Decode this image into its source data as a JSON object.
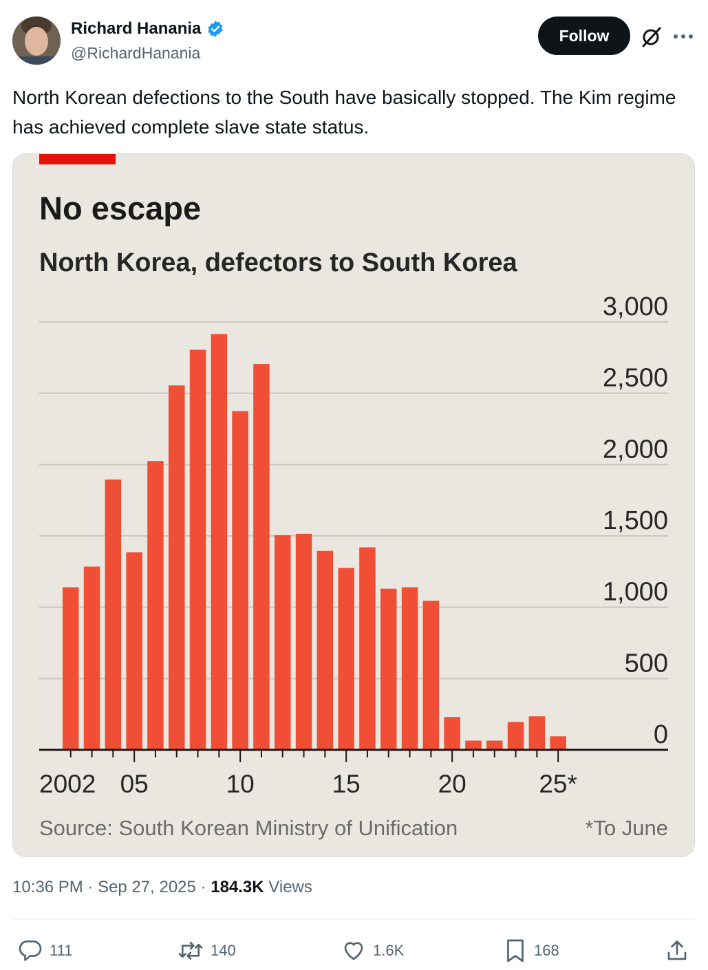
{
  "author": {
    "name": "Richard Hanania",
    "handle": "@RichardHanania",
    "verified": true
  },
  "follow_label": "Follow",
  "tweet_text": "North Korean defections to the South have basically stopped. The Kim regime has achieved complete slave state status.",
  "meta": {
    "time": "10:36 PM",
    "date": "Sep 27, 2025",
    "sep": "·",
    "views_count": "184.3K",
    "views_label": "Views"
  },
  "actions": {
    "replies": "111",
    "reposts": "140",
    "likes": "1.6K",
    "bookmarks": "168"
  },
  "colors": {
    "accent": "#1d9bf0",
    "bar": "#f04e35",
    "chart_bg": "#e9e7e0",
    "brand_red": "#e3120b"
  },
  "chart_data": {
    "type": "bar",
    "title": "No escape",
    "subtitle": "North Korea, defectors to South Korea",
    "years": [
      2002,
      2003,
      2004,
      2005,
      2006,
      2007,
      2008,
      2009,
      2010,
      2011,
      2012,
      2013,
      2014,
      2015,
      2016,
      2017,
      2018,
      2019,
      2020,
      2021,
      2022,
      2023,
      2024,
      2025
    ],
    "values": [
      1140,
      1285,
      1895,
      1385,
      2025,
      2555,
      2805,
      2915,
      2375,
      2705,
      1505,
      1515,
      1395,
      1275,
      1420,
      1130,
      1140,
      1045,
      230,
      65,
      65,
      195,
      235,
      95
    ],
    "y_ticks": [
      "3,000",
      "2,500",
      "2,000",
      "1,500",
      "1,000",
      "500",
      "0"
    ],
    "y_tick_values": [
      3000,
      2500,
      2000,
      1500,
      1000,
      500,
      0
    ],
    "ylim": [
      0,
      3000
    ],
    "x_tick_labels": [
      {
        "year": 2002,
        "label": "2002"
      },
      {
        "year": 2005,
        "label": "05"
      },
      {
        "year": 2010,
        "label": "10"
      },
      {
        "year": 2015,
        "label": "15"
      },
      {
        "year": 2020,
        "label": "20"
      },
      {
        "year": 2025,
        "label": "25*"
      }
    ],
    "source": "Source: South Korean Ministry of Unification",
    "note": "*To June"
  }
}
